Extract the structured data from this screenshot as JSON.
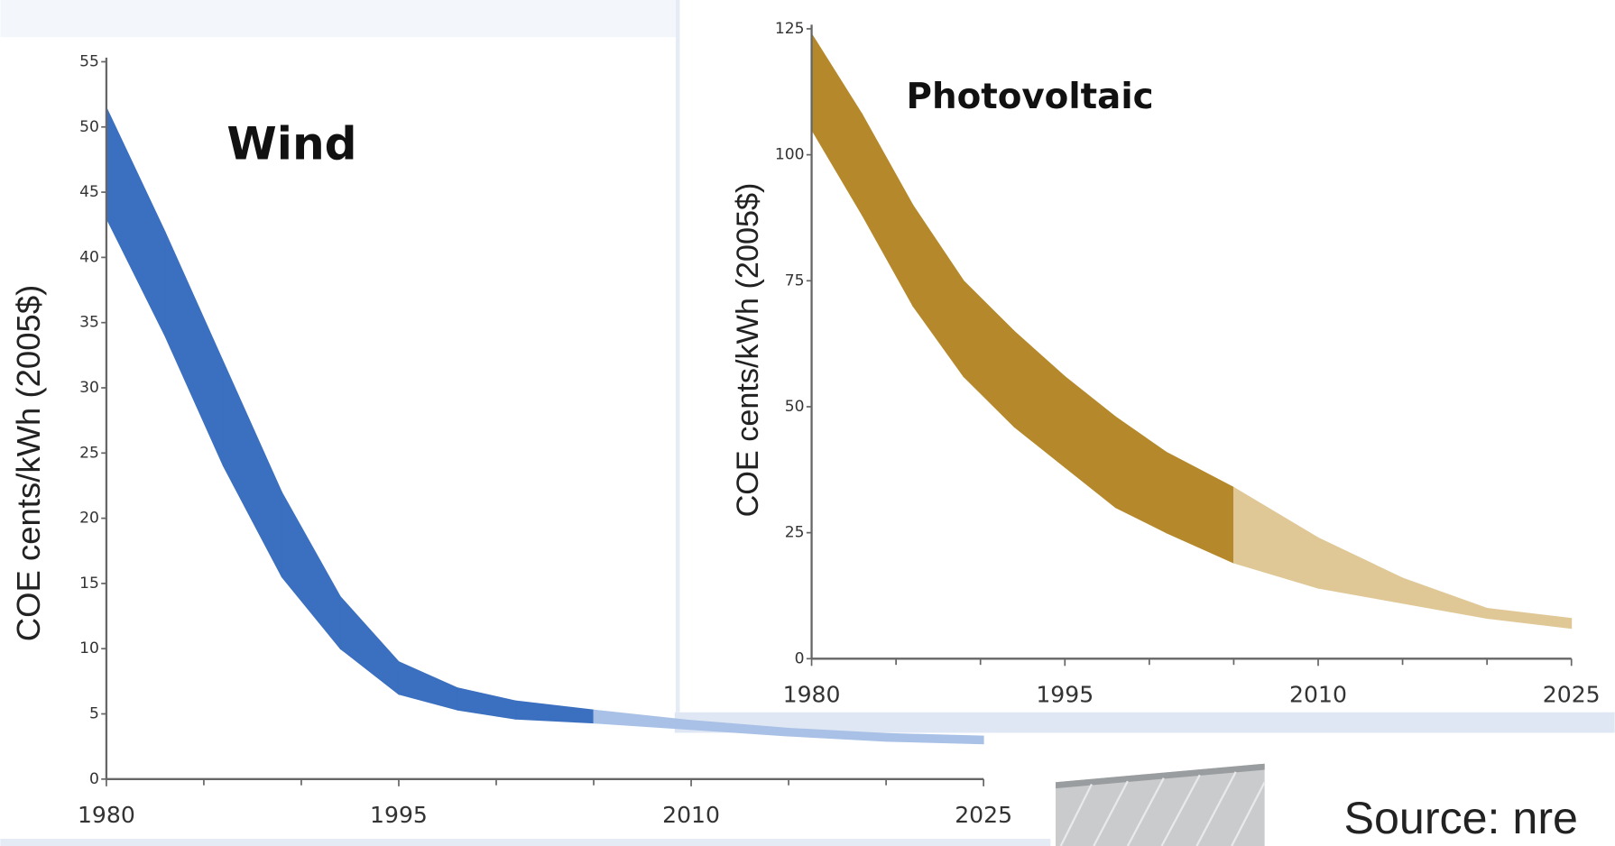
{
  "chart_data": [
    {
      "type": "band",
      "title": "Wind",
      "y_label": "COE cents/kWh (2005$)",
      "x": [
        1980,
        1983,
        1986,
        1989,
        1992,
        1995,
        1998,
        2001,
        2005,
        2010,
        2015,
        2020,
        2025
      ],
      "upper": [
        51.5,
        42,
        32,
        22,
        14,
        9,
        7,
        6,
        5.3,
        4.5,
        3.9,
        3.5,
        3.3
      ],
      "lower": [
        43,
        34,
        24,
        15.5,
        10,
        6.5,
        5.3,
        4.6,
        4.3,
        3.8,
        3.3,
        2.9,
        2.7
      ],
      "projection_from": 2005,
      "color": "#3b6fbf",
      "projection_color": "#a9c1e6",
      "xlim": [
        1980,
        2025
      ],
      "xticks": [
        1980,
        1995,
        2010,
        2025
      ],
      "minor_xticks": [
        1985,
        1990,
        2000,
        2005,
        2015,
        2020
      ],
      "ylim": [
        0,
        55
      ],
      "yticks": [
        0,
        5,
        10,
        15,
        20,
        25,
        30,
        35,
        40,
        45,
        50,
        55
      ]
    },
    {
      "type": "band",
      "title": "Photovoltaic",
      "y_label": "COE cents/kWh (2005$)",
      "x": [
        1980,
        1983,
        1986,
        1989,
        1992,
        1995,
        1998,
        2001,
        2005,
        2010,
        2015,
        2020,
        2025
      ],
      "upper": [
        124,
        108,
        90,
        75,
        65,
        56,
        48,
        41,
        34,
        24,
        16,
        10,
        8
      ],
      "lower": [
        105,
        88,
        70,
        56,
        46,
        38,
        30,
        25,
        19,
        14,
        11,
        8,
        6
      ],
      "projection_from": 2005,
      "color": "#b5892b",
      "projection_color": "#e0c896",
      "xlim": [
        1980,
        2025
      ],
      "xticks": [
        1980,
        1995,
        2010,
        2025
      ],
      "minor_xticks": [
        1985,
        1990,
        2000,
        2005,
        2015,
        2020
      ],
      "ylim": [
        0,
        125
      ],
      "yticks": [
        0,
        25,
        50,
        75,
        100,
        125
      ]
    }
  ],
  "source": "Source: nre"
}
